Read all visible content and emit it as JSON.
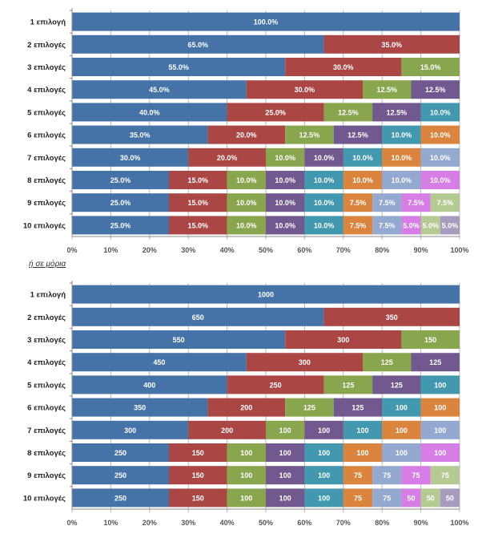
{
  "caption": "ή σε μόρια",
  "colors": [
    "#4572a7",
    "#aa4643",
    "#89a54e",
    "#71588f",
    "#4198af",
    "#db843d",
    "#93a9cf",
    "#d67ee6",
    "#b5ca92",
    "#a99bbd"
  ],
  "chart_data": [
    {
      "type": "bar",
      "stacked": true,
      "orientation": "horizontal",
      "title": "",
      "categories": [
        "1 επιλογή",
        "2 επιλογές",
        "3 επιλογές",
        "4 επιλογές",
        "5 επιλογές",
        "6 επιλογές",
        "7 επιλογές",
        "8 επιλογές",
        "9 επιλογές",
        "10 επιλογές"
      ],
      "rows": [
        {
          "values": [
            100
          ],
          "labels": [
            "100.0%"
          ]
        },
        {
          "values": [
            65,
            35
          ],
          "labels": [
            "65.0%",
            "35.0%"
          ]
        },
        {
          "values": [
            55,
            30,
            15
          ],
          "labels": [
            "55.0%",
            "30.0%",
            "15.0%"
          ]
        },
        {
          "values": [
            45,
            30,
            12.5,
            12.5
          ],
          "labels": [
            "45.0%",
            "30.0%",
            "12.5%",
            "12.5%"
          ]
        },
        {
          "values": [
            40,
            25,
            12.5,
            12.5,
            10
          ],
          "labels": [
            "40.0%",
            "25.0%",
            "12.5%",
            "12.5%",
            "10.0%"
          ]
        },
        {
          "values": [
            35,
            20,
            12.5,
            12.5,
            10,
            10
          ],
          "labels": [
            "35.0%",
            "20.0%",
            "12.5%",
            "12.5%",
            "10.0%",
            "10.0%"
          ]
        },
        {
          "values": [
            30,
            20,
            10,
            10,
            10,
            10,
            10
          ],
          "labels": [
            "30.0%",
            "20.0%",
            "10.0%",
            "10.0%",
            "10.0%",
            "10.0%",
            "10.0%"
          ]
        },
        {
          "values": [
            25,
            15,
            10,
            10,
            10,
            10,
            10,
            10
          ],
          "labels": [
            "25.0%",
            "15.0%",
            "10.0%",
            "10.0%",
            "10.0%",
            "10.0%",
            "10.0%",
            "10.0%"
          ]
        },
        {
          "values": [
            25,
            15,
            10,
            10,
            10,
            7.5,
            7.5,
            7.5,
            7.5
          ],
          "labels": [
            "25.0%",
            "15.0%",
            "10.0%",
            "10.0%",
            "10.0%",
            "7.5%",
            "7.5%",
            "7.5%",
            "7.5%"
          ]
        },
        {
          "values": [
            25,
            15,
            10,
            10,
            10,
            7.5,
            7.5,
            5,
            5,
            5
          ],
          "labels": [
            "25.0%",
            "15.0%",
            "10.0%",
            "10.0%",
            "10.0%",
            "7.5%",
            "7.5%",
            "5.0%",
            "5.0%",
            "5.0%"
          ]
        }
      ],
      "xticks": [
        "0%",
        "10%",
        "20%",
        "30%",
        "40%",
        "50%",
        "60%",
        "70%",
        "80%",
        "90%",
        "100%"
      ],
      "xlim": [
        0,
        100
      ],
      "grid": true
    },
    {
      "type": "bar",
      "stacked": true,
      "orientation": "horizontal",
      "title": "ή σε μόρια",
      "categories": [
        "1 επιλογή",
        "2 επιλογές",
        "3 επιλογές",
        "4 επιλογές",
        "5 επιλογές",
        "6 επιλογές",
        "7 επιλογές",
        "8 επιλογές",
        "9 επιλογές",
        "10 επιλογές"
      ],
      "rows": [
        {
          "values": [
            1000
          ],
          "labels": [
            "1000"
          ]
        },
        {
          "values": [
            650,
            350
          ],
          "labels": [
            "650",
            "350"
          ]
        },
        {
          "values": [
            550,
            300,
            150
          ],
          "labels": [
            "550",
            "300",
            "150"
          ]
        },
        {
          "values": [
            450,
            300,
            125,
            125
          ],
          "labels": [
            "450",
            "300",
            "125",
            "125"
          ]
        },
        {
          "values": [
            400,
            250,
            125,
            125,
            100
          ],
          "labels": [
            "400",
            "250",
            "125",
            "125",
            "100"
          ]
        },
        {
          "values": [
            350,
            200,
            125,
            125,
            100,
            100
          ],
          "labels": [
            "350",
            "200",
            "125",
            "125",
            "100",
            "100"
          ]
        },
        {
          "values": [
            300,
            200,
            100,
            100,
            100,
            100,
            100
          ],
          "labels": [
            "300",
            "200",
            "100",
            "100",
            "100",
            "100",
            "100"
          ]
        },
        {
          "values": [
            250,
            150,
            100,
            100,
            100,
            100,
            100,
            100
          ],
          "labels": [
            "250",
            "150",
            "100",
            "100",
            "100",
            "100",
            "100",
            "100"
          ]
        },
        {
          "values": [
            250,
            150,
            100,
            100,
            100,
            75,
            75,
            75,
            75
          ],
          "labels": [
            "250",
            "150",
            "100",
            "100",
            "100",
            "75",
            "75",
            "75",
            "75"
          ]
        },
        {
          "values": [
            250,
            150,
            100,
            100,
            100,
            75,
            75,
            50,
            50,
            50
          ],
          "labels": [
            "250",
            "150",
            "100",
            "100",
            "100",
            "75",
            "75",
            "50",
            "50",
            "50"
          ]
        }
      ],
      "xticks": [
        "0%",
        "10%",
        "20%",
        "30%",
        "40%",
        "50%",
        "60%",
        "70%",
        "80%",
        "90%",
        "100%"
      ],
      "xlim": [
        0,
        1000
      ],
      "grid": true
    }
  ]
}
